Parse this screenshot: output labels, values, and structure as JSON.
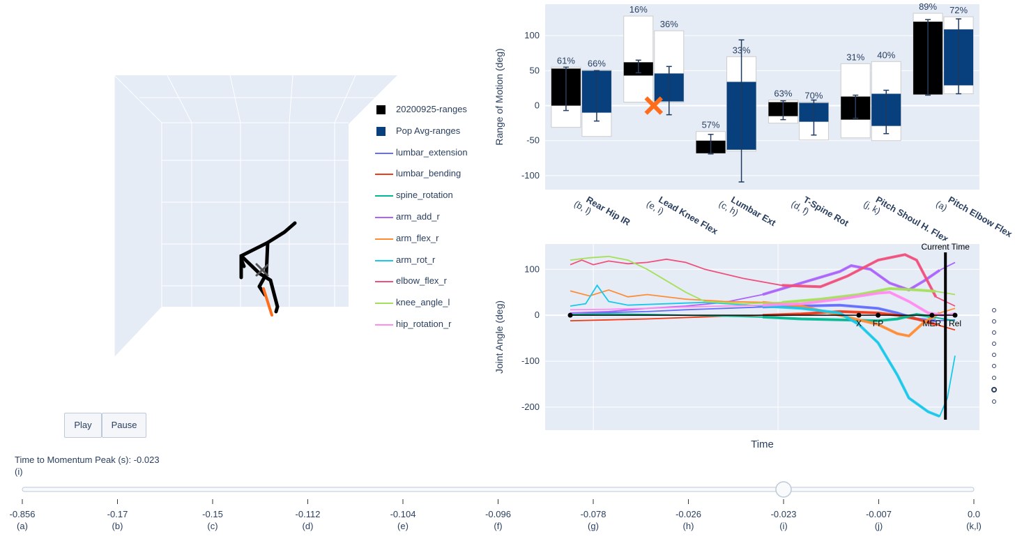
{
  "legend": [
    {
      "label": "20200925-ranges",
      "kind": "box",
      "color": "#000000"
    },
    {
      "label": "Pop Avg-ranges",
      "kind": "box",
      "color": "#083f7d"
    },
    {
      "label": "lumbar_extension",
      "kind": "line",
      "color": "#636efa"
    },
    {
      "label": "lumbar_bending",
      "kind": "line",
      "color": "#ef3b17"
    },
    {
      "label": "spine_rotation",
      "kind": "line",
      "color": "#00b891"
    },
    {
      "label": "arm_add_r",
      "kind": "line",
      "color": "#ab63fa"
    },
    {
      "label": "arm_flex_r",
      "kind": "line",
      "color": "#ff8c35"
    },
    {
      "label": "arm_rot_r",
      "kind": "line",
      "color": "#19c8ea"
    },
    {
      "label": "elbow_flex_r",
      "kind": "line",
      "color": "#f0507c"
    },
    {
      "label": "knee_angle_l",
      "kind": "line",
      "color": "#a5e05a"
    },
    {
      "label": "hip_rotation_r",
      "kind": "line",
      "color": "#ff8cf0"
    }
  ],
  "buttons": {
    "play": "Play",
    "pause": "Pause"
  },
  "slider": {
    "label": "Time to Momentum Peak (s): -0.023",
    "sublabel": "(i)",
    "value": "-0.023",
    "ticks": [
      {
        "value": "-0.856",
        "tag": "(a)"
      },
      {
        "value": "-0.17",
        "tag": "(b)"
      },
      {
        "value": "-0.15",
        "tag": "(c)"
      },
      {
        "value": "-0.112",
        "tag": "(d)"
      },
      {
        "value": "-0.104",
        "tag": "(e)"
      },
      {
        "value": "-0.096",
        "tag": "(f)"
      },
      {
        "value": "-0.078",
        "tag": "(g)"
      },
      {
        "value": "-0.026",
        "tag": "(h)"
      },
      {
        "value": "-0.023",
        "tag": "(i)"
      },
      {
        "value": "-0.007",
        "tag": "(j)"
      },
      {
        "value": "0.0",
        "tag": "(k,l)"
      }
    ]
  },
  "colors": {
    "subject": "#000000",
    "population": "#083f7d",
    "marker": "#ff6d1b",
    "plot_bg": "#e5ecf6"
  },
  "chart_data": [
    {
      "type": "bar",
      "ylabel": "Range of Motion (deg)",
      "ylim": [
        -120,
        145
      ],
      "yticks": [
        -100,
        -50,
        0,
        50,
        100
      ],
      "grid": true,
      "categories": [
        {
          "name": "Rear Hip IR",
          "tag": "(b, l)"
        },
        {
          "name": "Lead Knee Flex",
          "tag": "(e, i)"
        },
        {
          "name": "Lumbar Ext",
          "tag": "(c, h)"
        },
        {
          "name": "T-Spine Rot",
          "tag": "(d, f)"
        },
        {
          "name": "Pitch Shoul H. Flex",
          "tag": "(j, k)"
        },
        {
          "name": "Pitch Elbow Flex",
          "tag": "(a)"
        }
      ],
      "series": [
        {
          "name": "20200925-ranges",
          "color": "#000000",
          "ranges": [
            [
              0,
              53
            ],
            [
              43,
              62
            ],
            [
              -68,
              -50
            ],
            [
              -15,
              5
            ],
            [
              -20,
              13
            ],
            [
              16,
              120
            ]
          ],
          "envelope": [
            [
              -31,
              55
            ],
            [
              5,
              128
            ],
            [
              -68,
              -37
            ],
            [
              -25,
              8
            ],
            [
              -46,
              60
            ],
            [
              16,
              132
            ]
          ],
          "errors": [
            [
              -7,
              55
            ],
            [
              47,
              65
            ],
            [
              -69,
              -41
            ],
            [
              -20,
              7
            ],
            [
              -18,
              15
            ],
            [
              15,
              123
            ]
          ],
          "percent_labels": [
            "61%",
            "16%",
            "57%",
            "63%",
            "31%",
            "89%"
          ]
        },
        {
          "name": "Pop Avg-ranges",
          "color": "#083f7d",
          "ranges": [
            [
              -10,
              50
            ],
            [
              6,
              46
            ],
            [
              -63,
              34
            ],
            [
              -23,
              4
            ],
            [
              -29,
              17
            ],
            [
              29,
              109
            ]
          ],
          "envelope": [
            [
              -44,
              51
            ],
            [
              5,
              107
            ],
            [
              -65,
              70
            ],
            [
              -49,
              5
            ],
            [
              -50,
              63
            ],
            [
              17,
              127
            ]
          ],
          "errors": [
            [
              -22,
              50
            ],
            [
              -13,
              56
            ],
            [
              -109,
              94
            ],
            [
              -42,
              8
            ],
            [
              -40,
              22
            ],
            [
              17,
              124
            ]
          ],
          "percent_labels": [
            "66%",
            "36%",
            "33%",
            "70%",
            "40%",
            "72%"
          ]
        }
      ],
      "marker": {
        "category": "Lead Knee Flex",
        "value": 0,
        "symbol": "x"
      }
    },
    {
      "type": "line",
      "xlabel": "Time",
      "ylabel": "Joint Angle (deg)",
      "ylim": [
        -250,
        155
      ],
      "yticks": [
        -200,
        -100,
        0,
        100
      ],
      "current_time_label": "Current Time",
      "current_time": 0.975,
      "events": [
        {
          "label": "X",
          "t": 0.75
        },
        {
          "label": "FP",
          "t": 0.8
        },
        {
          "label": "MER",
          "t": 0.94
        },
        {
          "label": "Rel",
          "t": 1.0
        }
      ],
      "event_axis_start": 0,
      "series": [
        {
          "name": "lumbar_extension",
          "color": "#636efa",
          "points": [
            [
              0,
              5
            ],
            [
              0.1,
              6
            ],
            [
              0.2,
              8
            ],
            [
              0.3,
              12
            ],
            [
              0.4,
              15
            ],
            [
              0.5,
              18
            ],
            [
              0.6,
              20
            ],
            [
              0.7,
              22
            ],
            [
              0.8,
              15
            ],
            [
              0.85,
              5
            ],
            [
              0.9,
              -8
            ],
            [
              0.95,
              -12
            ],
            [
              1,
              -10
            ]
          ]
        },
        {
          "name": "lumbar_bending",
          "color": "#ef3b17",
          "points": [
            [
              0,
              -12
            ],
            [
              0.1,
              -10
            ],
            [
              0.2,
              -8
            ],
            [
              0.3,
              -5
            ],
            [
              0.4,
              -2
            ],
            [
              0.5,
              0
            ],
            [
              0.6,
              3
            ],
            [
              0.7,
              8
            ],
            [
              0.8,
              5
            ],
            [
              0.85,
              0
            ],
            [
              0.9,
              -8
            ],
            [
              0.95,
              -20
            ],
            [
              1,
              -32
            ]
          ]
        },
        {
          "name": "spine_rotation",
          "color": "#00b891",
          "points": [
            [
              0,
              2
            ],
            [
              0.1,
              3
            ],
            [
              0.2,
              2
            ],
            [
              0.3,
              0
            ],
            [
              0.4,
              -2
            ],
            [
              0.5,
              -4
            ],
            [
              0.6,
              -8
            ],
            [
              0.7,
              -10
            ],
            [
              0.8,
              -12
            ],
            [
              0.85,
              -8
            ],
            [
              0.9,
              2
            ],
            [
              0.95,
              -5
            ],
            [
              1,
              -12
            ]
          ]
        },
        {
          "name": "arm_add_r",
          "color": "#ab63fa",
          "points": [
            [
              0,
              5
            ],
            [
              0.1,
              8
            ],
            [
              0.2,
              15
            ],
            [
              0.3,
              20
            ],
            [
              0.4,
              28
            ],
            [
              0.5,
              45
            ],
            [
              0.6,
              70
            ],
            [
              0.7,
              95
            ],
            [
              0.73,
              108
            ],
            [
              0.78,
              100
            ],
            [
              0.83,
              70
            ],
            [
              0.88,
              55
            ],
            [
              0.92,
              75
            ],
            [
              0.96,
              98
            ],
            [
              1,
              115
            ]
          ]
        },
        {
          "name": "arm_flex_r",
          "color": "#ff8c35",
          "points": [
            [
              0,
              53
            ],
            [
              0.05,
              42
            ],
            [
              0.1,
              55
            ],
            [
              0.15,
              40
            ],
            [
              0.2,
              45
            ],
            [
              0.3,
              35
            ],
            [
              0.4,
              30
            ],
            [
              0.5,
              28
            ],
            [
              0.6,
              20
            ],
            [
              0.7,
              0
            ],
            [
              0.8,
              -20
            ],
            [
              0.85,
              -40
            ],
            [
              0.88,
              -45
            ],
            [
              0.92,
              -15
            ],
            [
              0.96,
              5
            ],
            [
              1,
              15
            ]
          ]
        },
        {
          "name": "arm_rot_r",
          "color": "#19c8ea",
          "points": [
            [
              0,
              20
            ],
            [
              0.04,
              25
            ],
            [
              0.07,
              65
            ],
            [
              0.1,
              30
            ],
            [
              0.15,
              22
            ],
            [
              0.25,
              25
            ],
            [
              0.35,
              28
            ],
            [
              0.5,
              20
            ],
            [
              0.6,
              15
            ],
            [
              0.7,
              5
            ],
            [
              0.75,
              -20
            ],
            [
              0.8,
              -60
            ],
            [
              0.85,
              -130
            ],
            [
              0.88,
              -180
            ],
            [
              0.93,
              -210
            ],
            [
              0.96,
              -220
            ],
            [
              0.98,
              -180
            ],
            [
              1,
              -88
            ]
          ]
        },
        {
          "name": "elbow_flex_r",
          "color": "#f0507c",
          "points": [
            [
              0,
              110
            ],
            [
              0.03,
              120
            ],
            [
              0.06,
              110
            ],
            [
              0.1,
              118
            ],
            [
              0.15,
              112
            ],
            [
              0.2,
              115
            ],
            [
              0.25,
              122
            ],
            [
              0.3,
              115
            ],
            [
              0.35,
              100
            ],
            [
              0.45,
              80
            ],
            [
              0.55,
              65
            ],
            [
              0.65,
              62
            ],
            [
              0.72,
              85
            ],
            [
              0.8,
              120
            ],
            [
              0.87,
              132
            ],
            [
              0.9,
              120
            ],
            [
              0.95,
              40
            ],
            [
              1,
              20
            ]
          ]
        },
        {
          "name": "knee_angle_l",
          "color": "#a5e05a",
          "points": [
            [
              0,
              120
            ],
            [
              0.05,
              125
            ],
            [
              0.1,
              128
            ],
            [
              0.15,
              120
            ],
            [
              0.2,
              100
            ],
            [
              0.25,
              75
            ],
            [
              0.3,
              50
            ],
            [
              0.35,
              30
            ],
            [
              0.45,
              25
            ],
            [
              0.55,
              28
            ],
            [
              0.65,
              35
            ],
            [
              0.75,
              45
            ],
            [
              0.83,
              58
            ],
            [
              0.9,
              55
            ],
            [
              0.95,
              52
            ],
            [
              1,
              45
            ]
          ]
        },
        {
          "name": "hip_rotation_r",
          "color": "#ff8cf0",
          "points": [
            [
              0,
              12
            ],
            [
              0.1,
              13
            ],
            [
              0.2,
              15
            ],
            [
              0.3,
              18
            ],
            [
              0.4,
              20
            ],
            [
              0.5,
              22
            ],
            [
              0.6,
              25
            ],
            [
              0.7,
              35
            ],
            [
              0.8,
              48
            ],
            [
              0.83,
              50
            ],
            [
              0.88,
              30
            ],
            [
              0.93,
              5
            ],
            [
              0.97,
              0
            ],
            [
              1,
              5
            ]
          ]
        }
      ]
    }
  ]
}
